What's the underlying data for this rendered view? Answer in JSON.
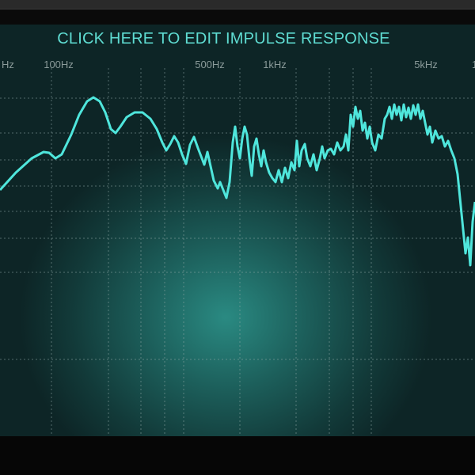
{
  "header": {
    "title": "CLICK HERE TO EDIT IMPULSE RESPONSE"
  },
  "frequency_labels": [
    {
      "text": "Hz",
      "pos": "left-edge"
    },
    {
      "text": "100Hz"
    },
    {
      "text": "500Hz"
    },
    {
      "text": "1kHz"
    },
    {
      "text": "5kHz"
    },
    {
      "text": "1",
      "pos": "right-edge"
    }
  ],
  "colors": {
    "curve": "#4fe6dc",
    "title": "#5fdcd2",
    "grid": "#8fa8a6",
    "background": "#1c5e5a"
  },
  "grid": true
}
